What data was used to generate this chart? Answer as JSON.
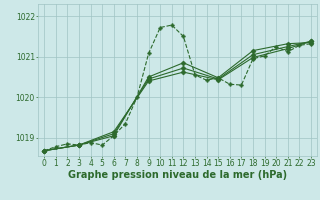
{
  "bg_color": "#cde8e8",
  "grid_color": "#a0c4c4",
  "line_color": "#2d6a2d",
  "xlabel": "Graphe pression niveau de la mer (hPa)",
  "ylim": [
    1018.55,
    1022.3
  ],
  "xlim": [
    -0.5,
    23.5
  ],
  "yticks": [
    1019,
    1020,
    1021,
    1022
  ],
  "xticks": [
    0,
    1,
    2,
    3,
    4,
    5,
    6,
    7,
    8,
    9,
    10,
    11,
    12,
    13,
    14,
    15,
    16,
    17,
    18,
    19,
    20,
    21,
    22,
    23
  ],
  "series": [
    {
      "x": [
        0,
        1,
        2,
        3,
        4,
        5,
        6,
        7,
        8,
        9,
        10,
        11,
        12,
        13,
        14,
        15,
        16,
        17,
        18,
        19,
        20,
        21,
        22,
        23
      ],
      "y": [
        1018.68,
        1018.78,
        1018.85,
        1018.82,
        1018.88,
        1018.82,
        1019.05,
        1019.35,
        1020.0,
        1021.08,
        1021.72,
        1021.78,
        1021.5,
        1020.55,
        1020.42,
        1020.48,
        1020.32,
        1020.3,
        1020.95,
        1021.02,
        1021.25,
        1021.12,
        1021.28,
        1021.32
      ],
      "marker": "P",
      "markersize": 2.5,
      "linewidth": 0.8,
      "linestyle": "--"
    },
    {
      "x": [
        0,
        3,
        6,
        9,
        12,
        15,
        18,
        21,
        23
      ],
      "y": [
        1018.68,
        1018.82,
        1019.05,
        1020.5,
        1020.85,
        1020.48,
        1021.15,
        1021.32,
        1021.35
      ],
      "marker": "D",
      "markersize": 2.5,
      "linewidth": 0.8,
      "linestyle": "-"
    },
    {
      "x": [
        0,
        3,
        6,
        9,
        12,
        15,
        18,
        21,
        23
      ],
      "y": [
        1018.68,
        1018.82,
        1019.1,
        1020.45,
        1020.72,
        1020.45,
        1021.05,
        1021.25,
        1021.38
      ],
      "marker": "D",
      "markersize": 2.5,
      "linewidth": 0.8,
      "linestyle": "-"
    },
    {
      "x": [
        0,
        3,
        6,
        9,
        12,
        15,
        18,
        21,
        23
      ],
      "y": [
        1018.68,
        1018.82,
        1019.15,
        1020.4,
        1020.62,
        1020.43,
        1020.98,
        1021.2,
        1021.38
      ],
      "marker": "D",
      "markersize": 2.5,
      "linewidth": 0.8,
      "linestyle": "-"
    }
  ],
  "tick_fontsize": 5.5,
  "label_fontsize": 7.0,
  "tick_color": "#2d6a2d",
  "label_color": "#2d6a2d"
}
